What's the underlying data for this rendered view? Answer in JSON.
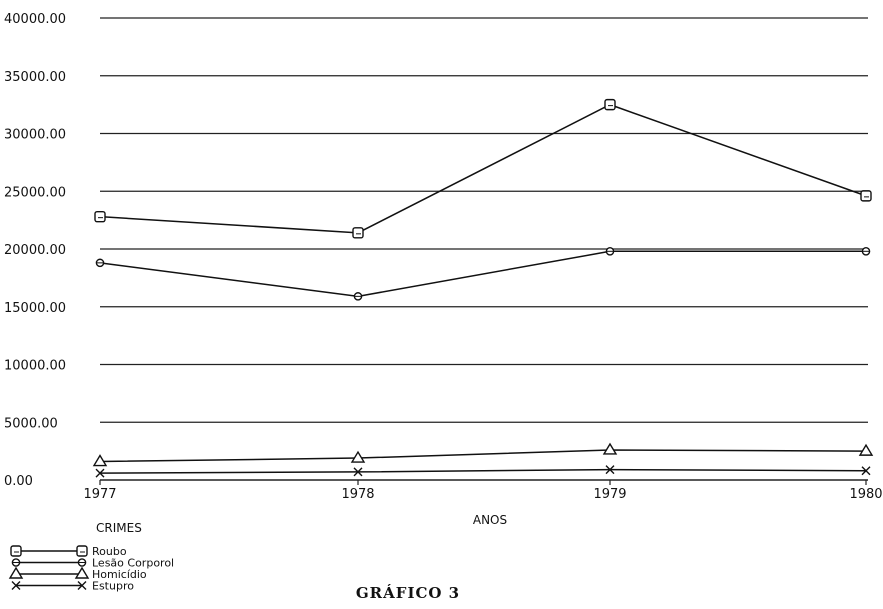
{
  "chart_data": {
    "type": "line",
    "categories": [
      "1977",
      "1978",
      "1979",
      "1980"
    ],
    "ylim": [
      0,
      40000
    ],
    "yticks": [
      "0.00",
      "5000.00",
      "10000.00",
      "15000.00",
      "20000.00",
      "25000.00",
      "30000.00",
      "35000.00",
      "40000.00"
    ],
    "ytick_values": [
      0,
      5000,
      10000,
      15000,
      20000,
      25000,
      30000,
      35000,
      40000
    ],
    "xlabel": "ANOS",
    "grid": true,
    "legend_position": "bottom-left",
    "legend_title": "CRIMES",
    "series": [
      {
        "name": "Roubo",
        "marker": "square",
        "values": [
          22800,
          21400,
          32500,
          24600
        ]
      },
      {
        "name": "Lesão Corporol",
        "marker": "circle",
        "values": [
          18800,
          15900,
          19800,
          19800
        ]
      },
      {
        "name": "Homicídio",
        "marker": "triangle",
        "values": [
          1600,
          1900,
          2600,
          2500
        ]
      },
      {
        "name": "Estupro",
        "marker": "x",
        "values": [
          600,
          700,
          900,
          800
        ]
      }
    ]
  },
  "caption": "GRÁFICO 3"
}
